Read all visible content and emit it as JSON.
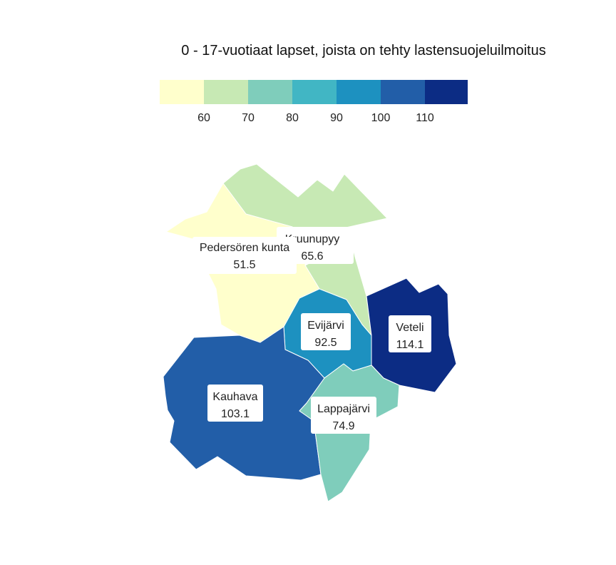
{
  "title": "0 - 17-vuotiaat lapset, joista on tehty lastensuojeluilmoitus",
  "legend": {
    "colors": [
      "#ffffcc",
      "#c7e9b4",
      "#7fcdbb",
      "#41b6c4",
      "#1d91c0",
      "#225ea8",
      "#0c2c84"
    ],
    "ticks": [
      "60",
      "70",
      "80",
      "90",
      "100",
      "110"
    ]
  },
  "regions": [
    {
      "name": "Kruunupyy",
      "value": "65.6",
      "color": "#c7e9b4"
    },
    {
      "name": "Pedersören kunta",
      "value": "51.5",
      "color": "#ffffcc"
    },
    {
      "name": "Evijärvi",
      "value": "92.5",
      "color": "#1d91c0"
    },
    {
      "name": "Veteli",
      "value": "114.1",
      "color": "#0c2c84"
    },
    {
      "name": "Kauhava",
      "value": "103.1",
      "color": "#225ea8"
    },
    {
      "name": "Lappajärvi",
      "value": "74.9",
      "color": "#7fcdbb"
    }
  ]
}
